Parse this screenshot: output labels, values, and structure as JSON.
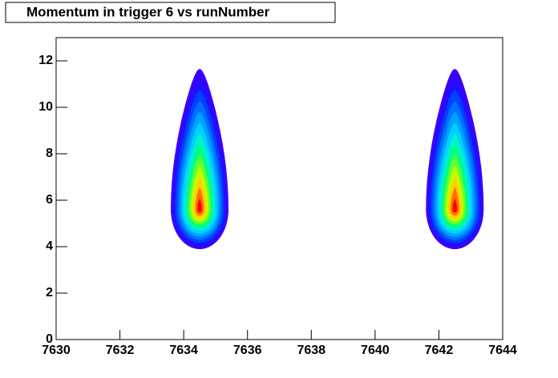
{
  "chart_data": {
    "type": "contour",
    "title": "Momentum in trigger 6 vs runNumber",
    "x": [
      7634.5,
      7642.5
    ],
    "values": [
      5.6,
      5.6
    ],
    "colors": [
      "#3a00ff",
      "#2010ff",
      "#0040ff",
      "#0070ff",
      "#00a0ff",
      "#00d0ff",
      "#00f0d0",
      "#00ff80",
      "#60ff30",
      "#c0ff00",
      "#ffd000",
      "#ff7000",
      "#ff0000"
    ],
    "xlim": [
      7630,
      7644
    ],
    "xticks": [
      7630,
      7632,
      7634,
      7636,
      7638,
      7640,
      7642,
      7644
    ],
    "ylim": [
      0,
      13
    ],
    "yticks": [
      0,
      2,
      4,
      6,
      8,
      10,
      12
    ]
  }
}
